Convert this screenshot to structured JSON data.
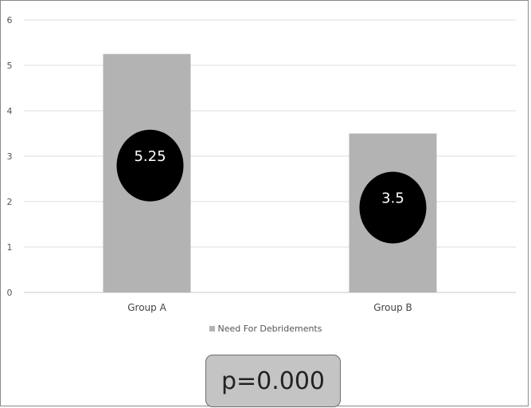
{
  "chart_data": {
    "type": "bar",
    "categories": [
      "Group A",
      "Group B"
    ],
    "series": [
      {
        "name": "Need For Debridements",
        "values": [
          5.25,
          3.5
        ]
      }
    ],
    "data_labels": [
      "5.25",
      "3.5"
    ],
    "y_ticks": [
      "0",
      "1",
      "2",
      "3",
      "4",
      "5",
      "6"
    ],
    "ylim": [
      0,
      6
    ],
    "grid": true,
    "legend_position": "bottom",
    "title": "",
    "xlabel": "",
    "ylabel": "",
    "colors": {
      "bar": "#b3b3b3",
      "label_bubble": "#000000",
      "grid": "#dcdcdc"
    }
  },
  "annotation": {
    "text": "p=0.000"
  }
}
